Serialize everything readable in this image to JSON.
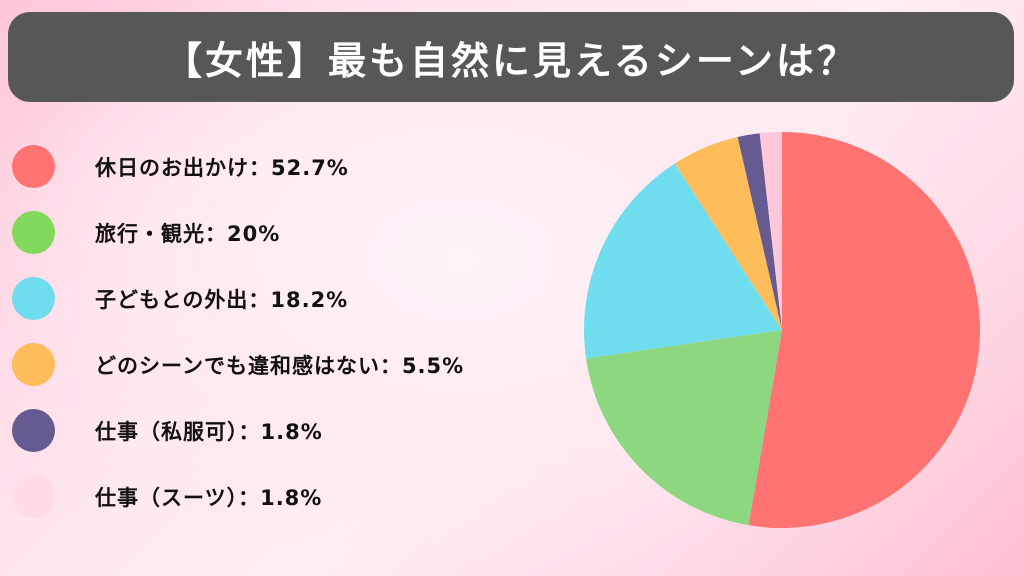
{
  "title": "【女性】最も自然に見えるシーンは？",
  "legend": {
    "items": [
      {
        "label": "休日のお出かけ：52.7%",
        "color": "#ff7373"
      },
      {
        "label": "旅行・観光：20%",
        "color": "#80d95a"
      },
      {
        "label": "子どもとの外出：18.2%",
        "color": "#70ddef"
      },
      {
        "label": "どのシーンでも違和感はない：5.5%",
        "color": "#ffbc5a"
      },
      {
        "label": "仕事（私服可）：1.8%",
        "color": "#655b90"
      },
      {
        "label": "仕事（スーツ）：1.8%",
        "color": "#ffdbe6"
      }
    ]
  },
  "chart_data": {
    "type": "pie",
    "title": "【女性】最も自然に見えるシーンは？",
    "categories": [
      "休日のお出かけ",
      "旅行・観光",
      "子どもとの外出",
      "どのシーンでも違和感はない",
      "仕事（私服可）",
      "仕事（スーツ）"
    ],
    "values": [
      52.7,
      20,
      18.2,
      5.5,
      1.8,
      1.8
    ],
    "unit": "%",
    "colors": [
      "#ff7373",
      "#8dd780",
      "#70ddef",
      "#ffbc5a",
      "#655b90",
      "#ffc8da"
    ],
    "start_angle": "12 o'clock",
    "direction": "clockwise",
    "legend_position": "left"
  }
}
